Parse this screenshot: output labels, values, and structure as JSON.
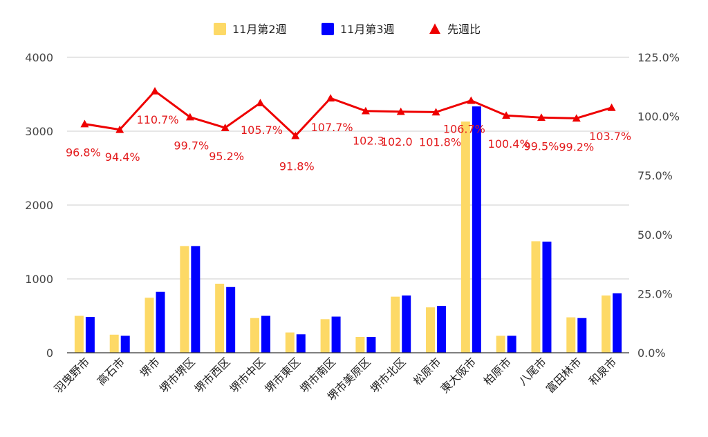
{
  "chart_data": {
    "type": "bar",
    "categories": [
      "羽曳野市",
      "高石市",
      "堺市",
      "堺市堺区",
      "堺市西区",
      "堺市中区",
      "堺市東区",
      "堺市南区",
      "堺市美原区",
      "堺市北区",
      "松原市",
      "東大阪市",
      "柏原市",
      "八尾市",
      "富田林市",
      "和泉市"
    ],
    "series": [
      {
        "name": "11月第2週",
        "type": "bar",
        "axis": "left",
        "color": "#fdd966",
        "values": [
          500,
          245,
          745,
          1445,
          935,
          470,
          275,
          455,
          215,
          760,
          615,
          3130,
          230,
          1510,
          480,
          775
        ]
      },
      {
        "name": "11月第3週",
        "type": "bar",
        "axis": "right-not",
        "color": "#0000ff",
        "values": [
          485,
          230,
          825,
          1445,
          890,
          500,
          250,
          490,
          215,
          775,
          635,
          3335,
          230,
          1505,
          470,
          805
        ]
      },
      {
        "name": "先週比",
        "type": "line",
        "axis": "right",
        "color": "#ee0000",
        "values": [
          96.8,
          94.4,
          110.7,
          99.7,
          95.2,
          105.7,
          91.8,
          107.7,
          102.3,
          102.0,
          101.8,
          106.7,
          100.4,
          99.5,
          99.2,
          103.7
        ],
        "labels": [
          "96.8%",
          "94.4%",
          "110.7%",
          "99.7%",
          "95.2%",
          "105.7%",
          "91.8%",
          "107.7%",
          "102.3",
          "102.0",
          "101.8%",
          "106.7%",
          "100.4%",
          "99.5%",
          "99.2%",
          "103.7%"
        ]
      }
    ],
    "left_axis": {
      "ylim": [
        0,
        4000
      ],
      "ticks": [
        "0",
        "1000",
        "2000",
        "3000",
        "4000"
      ]
    },
    "right_axis": {
      "ylim": [
        0,
        125
      ],
      "ticks": [
        "0.0%",
        "25.0%",
        "50.0%",
        "75.0%",
        "100.0%",
        "125.0%"
      ]
    },
    "grid": true,
    "legend_position": "top"
  }
}
